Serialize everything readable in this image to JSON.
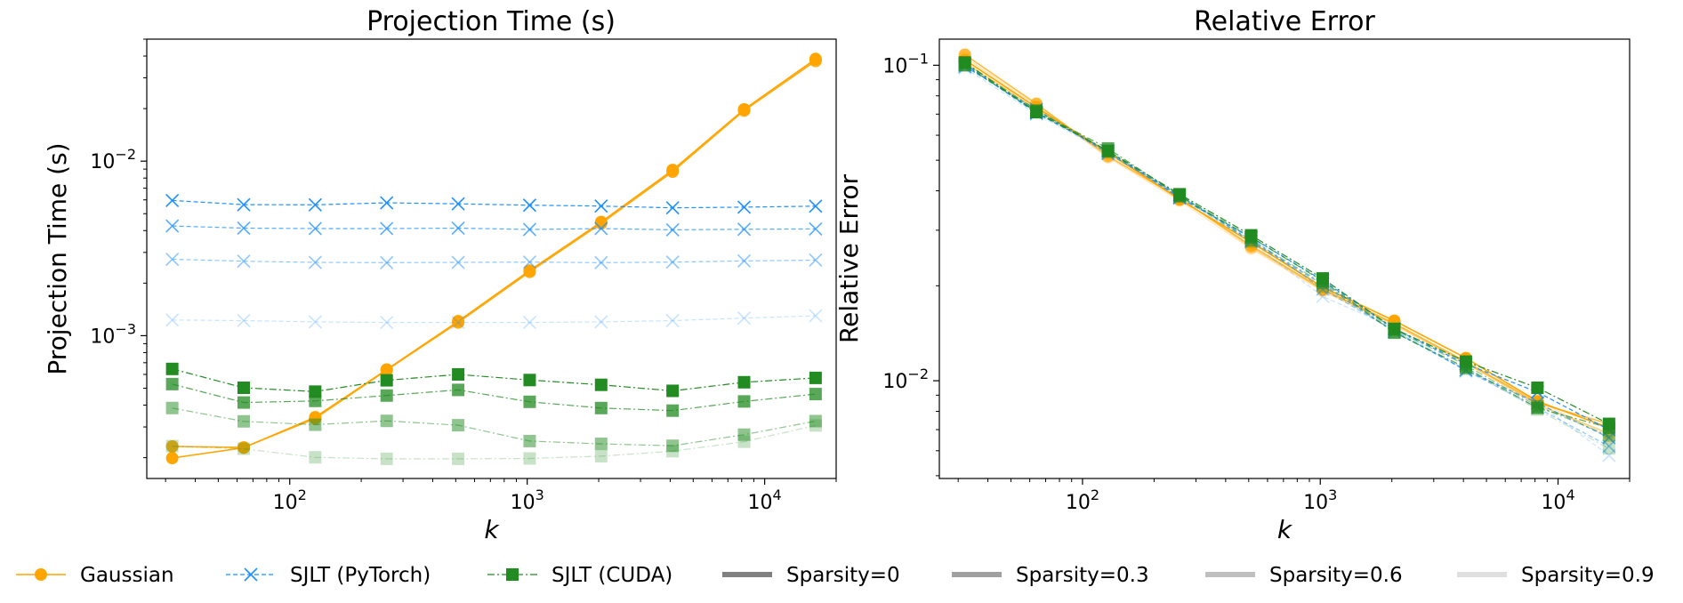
{
  "colors": {
    "gaussian": "#FFA500",
    "sjlt_pytorch": "#1E90FF",
    "sjlt_cuda": "#228B22",
    "sparsity_gray": "#808080"
  },
  "sparsity_alpha": [
    1.0,
    0.75,
    0.5,
    0.25
  ],
  "legend": {
    "placement": "bottom",
    "items": [
      {
        "label": "Gaussian",
        "kind": "gaussian"
      },
      {
        "label": "SJLT (PyTorch)",
        "kind": "sjlt_pytorch"
      },
      {
        "label": "SJLT (CUDA)",
        "kind": "sjlt_cuda"
      },
      {
        "label": "Sparsity=0",
        "kind": "sparsity",
        "alpha": 1.0
      },
      {
        "label": "Sparsity=0.3",
        "kind": "sparsity",
        "alpha": 0.75
      },
      {
        "label": "Sparsity=0.6",
        "kind": "sparsity",
        "alpha": 0.5
      },
      {
        "label": "Sparsity=0.9",
        "kind": "sparsity",
        "alpha": 0.25
      }
    ]
  },
  "chart_data": [
    {
      "type": "line",
      "title": "Projection Time (s)",
      "xlabel": "k",
      "ylabel": "Projection Time (s)",
      "xscale": "log",
      "yscale": "log",
      "xlim": [
        25,
        20000
      ],
      "ylim": [
        0.000152,
        0.05
      ],
      "xticks": [
        {
          "value": 100,
          "mantissa": "10",
          "exp": "2"
        },
        {
          "value": 1000,
          "mantissa": "10",
          "exp": "3"
        },
        {
          "value": 10000,
          "mantissa": "10",
          "exp": "4"
        }
      ],
      "yticks": [
        {
          "value": 0.001,
          "mantissa": "10",
          "exp": "−3"
        },
        {
          "value": 0.01,
          "mantissa": "10",
          "exp": "−2"
        }
      ],
      "grid": false,
      "x": [
        32,
        64,
        128,
        256,
        512,
        1024,
        2048,
        4096,
        8192,
        16384
      ],
      "series": [
        {
          "method": "gaussian",
          "sparsity": 0,
          "values": [
            0.000199,
            0.000228,
            0.000341,
            0.00064,
            0.00121,
            0.00236,
            0.00448,
            0.0089,
            0.0198,
            0.0385
          ]
        },
        {
          "method": "gaussian",
          "sparsity": 0.3,
          "values": [
            0.000232,
            0.000229,
            0.000335,
            0.000635,
            0.00119,
            0.00232,
            0.0044,
            0.0087,
            0.0195,
            0.0375
          ]
        },
        {
          "method": "gaussian",
          "sparsity": 0.6,
          "values": [
            0.000232,
            0.000229,
            0.000335,
            0.000635,
            0.00119,
            0.00232,
            0.0044,
            0.0087,
            0.0195,
            0.0375
          ]
        },
        {
          "method": "gaussian",
          "sparsity": 0.9,
          "values": [
            0.000232,
            0.000229,
            0.000335,
            0.000635,
            0.00119,
            0.00232,
            0.0044,
            0.0087,
            0.0195,
            0.0375
          ]
        },
        {
          "method": "sjlt_pytorch",
          "sparsity": 0,
          "values": [
            0.00595,
            0.00563,
            0.00562,
            0.00577,
            0.00569,
            0.00559,
            0.00553,
            0.0054,
            0.00545,
            0.00552
          ]
        },
        {
          "method": "sjlt_pytorch",
          "sparsity": 0.3,
          "values": [
            0.00425,
            0.00413,
            0.00411,
            0.00411,
            0.00413,
            0.00406,
            0.00411,
            0.00404,
            0.00407,
            0.00409
          ]
        },
        {
          "method": "sjlt_pytorch",
          "sparsity": 0.6,
          "values": [
            0.00274,
            0.00267,
            0.00263,
            0.00262,
            0.00263,
            0.00264,
            0.00262,
            0.00264,
            0.00268,
            0.00271
          ]
        },
        {
          "method": "sjlt_pytorch",
          "sparsity": 0.9,
          "values": [
            0.00123,
            0.00122,
            0.0012,
            0.00119,
            0.00119,
            0.00119,
            0.0012,
            0.00122,
            0.00126,
            0.0013
          ]
        },
        {
          "method": "sjlt_cuda",
          "sparsity": 0,
          "values": [
            0.000645,
            0.000503,
            0.000478,
            0.000555,
            0.0006,
            0.000557,
            0.000523,
            0.000483,
            0.000541,
            0.000573
          ]
        },
        {
          "method": "sjlt_cuda",
          "sparsity": 0.3,
          "values": [
            0.000528,
            0.000414,
            0.000423,
            0.000454,
            0.000489,
            0.000418,
            0.000385,
            0.000372,
            0.00042,
            0.000463
          ]
        },
        {
          "method": "sjlt_cuda",
          "sparsity": 0.6,
          "values": [
            0.000385,
            0.000323,
            0.000309,
            0.000325,
            0.000307,
            0.000249,
            0.00024,
            0.000234,
            0.000271,
            0.000324
          ]
        },
        {
          "method": "sjlt_cuda",
          "sparsity": 0.9,
          "values": [
            0.000233,
            0.000225,
            0.000201,
            0.000197,
            0.000197,
            0.000198,
            0.000204,
            0.000218,
            0.000247,
            0.000306
          ]
        }
      ]
    },
    {
      "type": "line",
      "title": "Relative Error",
      "xlabel": "k",
      "ylabel": "Relative Error",
      "xscale": "log",
      "yscale": "log",
      "xlim": [
        25,
        20000
      ],
      "ylim": [
        0.0049,
        0.121
      ],
      "xticks": [
        {
          "value": 100,
          "mantissa": "10",
          "exp": "2"
        },
        {
          "value": 1000,
          "mantissa": "10",
          "exp": "3"
        },
        {
          "value": 10000,
          "mantissa": "10",
          "exp": "4"
        }
      ],
      "yticks": [
        {
          "value": 0.01,
          "mantissa": "10",
          "exp": "−2"
        },
        {
          "value": 0.1,
          "mantissa": "10",
          "exp": "−1"
        }
      ],
      "grid": false,
      "x": [
        32,
        64,
        128,
        256,
        512,
        1024,
        2048,
        4096,
        8192,
        16384
      ],
      "series": [
        {
          "method": "gaussian",
          "sparsity": 0,
          "values": [
            0.104,
            0.0735,
            0.053,
            0.0375,
            0.0275,
            0.0198,
            0.0155,
            0.0118,
            0.0086,
            0.0071
          ]
        },
        {
          "method": "gaussian",
          "sparsity": 0.3,
          "values": [
            0.108,
            0.0755,
            0.0515,
            0.0378,
            0.0268,
            0.0195,
            0.0152,
            0.0115,
            0.0085,
            0.0073
          ]
        },
        {
          "method": "gaussian",
          "sparsity": 0.6,
          "values": [
            0.102,
            0.0725,
            0.0525,
            0.038,
            0.0265,
            0.0194,
            0.0151,
            0.0114,
            0.0084,
            0.0068
          ]
        },
        {
          "method": "gaussian",
          "sparsity": 0.9,
          "values": [
            0.106,
            0.0745,
            0.051,
            0.0372,
            0.0262,
            0.0192,
            0.015,
            0.0113,
            0.0087,
            0.0066
          ]
        },
        {
          "method": "sjlt_pytorch",
          "sparsity": 0,
          "values": [
            0.101,
            0.0705,
            0.0535,
            0.038,
            0.0285,
            0.0208,
            0.0146,
            0.0113,
            0.0092,
            0.007
          ]
        },
        {
          "method": "sjlt_pytorch",
          "sparsity": 0.3,
          "values": [
            0.099,
            0.0725,
            0.0525,
            0.0388,
            0.0277,
            0.0202,
            0.0143,
            0.0108,
            0.0085,
            0.0066
          ]
        },
        {
          "method": "sjlt_pytorch",
          "sparsity": 0.6,
          "values": [
            0.1,
            0.071,
            0.0535,
            0.0383,
            0.0283,
            0.0195,
            0.0144,
            0.0108,
            0.0082,
            0.0062
          ]
        },
        {
          "method": "sjlt_pytorch",
          "sparsity": 0.9,
          "values": [
            0.098,
            0.07,
            0.0528,
            0.0385,
            0.0275,
            0.0185,
            0.0147,
            0.0107,
            0.0085,
            0.0058
          ]
        },
        {
          "method": "sjlt_cuda",
          "sparsity": 0,
          "values": [
            0.102,
            0.071,
            0.0535,
            0.039,
            0.0289,
            0.0211,
            0.0146,
            0.0115,
            0.0095,
            0.0073
          ]
        },
        {
          "method": "sjlt_cuda",
          "sparsity": 0.3,
          "values": [
            0.1,
            0.0715,
            0.0545,
            0.0385,
            0.0285,
            0.0207,
            0.0142,
            0.011,
            0.0082,
            0.0071
          ]
        },
        {
          "method": "sjlt_cuda",
          "sparsity": 0.6,
          "values": [
            0.102,
            0.072,
            0.0535,
            0.0388,
            0.0279,
            0.0204,
            0.0145,
            0.0112,
            0.0083,
            0.0067
          ]
        },
        {
          "method": "sjlt_cuda",
          "sparsity": 0.9,
          "values": [
            0.1,
            0.071,
            0.053,
            0.0383,
            0.0276,
            0.0199,
            0.0143,
            0.0109,
            0.0081,
            0.0061
          ]
        }
      ]
    }
  ]
}
